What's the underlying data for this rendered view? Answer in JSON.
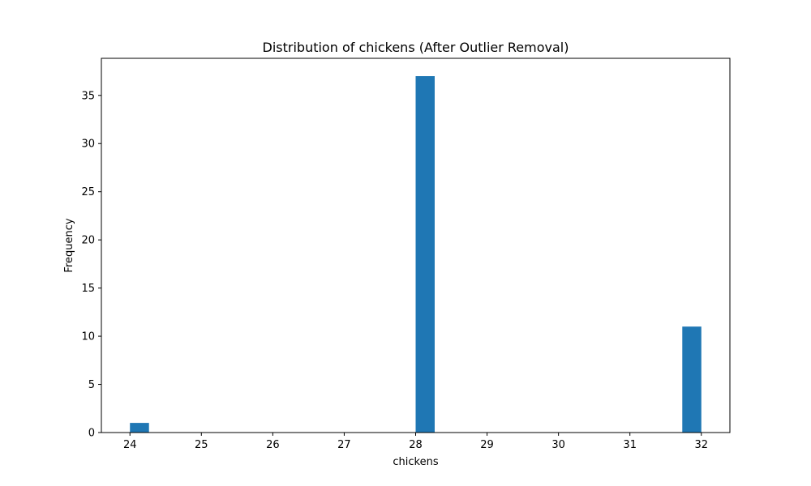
{
  "chart_data": {
    "type": "bar",
    "title": "Distribution of chickens (After Outlier Removal)",
    "xlabel": "chickens",
    "ylabel": "Frequency",
    "xlim": [
      23.6,
      32.4
    ],
    "ylim": [
      0,
      38.85
    ],
    "x_ticks": [
      24,
      25,
      26,
      27,
      28,
      29,
      30,
      31,
      32
    ],
    "x_tick_labels": [
      "24",
      "25",
      "26",
      "27",
      "28",
      "29",
      "30",
      "31",
      "32"
    ],
    "y_ticks": [
      0,
      5,
      10,
      15,
      20,
      25,
      30,
      35
    ],
    "y_tick_labels": [
      "0",
      "5",
      "10",
      "15",
      "20",
      "25",
      "30",
      "35"
    ],
    "bars": [
      {
        "x_start": 24.0,
        "x_end": 24.2667,
        "count": 1
      },
      {
        "x_start": 28.0,
        "x_end": 28.2667,
        "count": 37
      },
      {
        "x_start": 31.7333,
        "x_end": 32.0,
        "count": 11
      }
    ],
    "bar_color": "#1f77b4",
    "grid": false,
    "legend": "none"
  }
}
